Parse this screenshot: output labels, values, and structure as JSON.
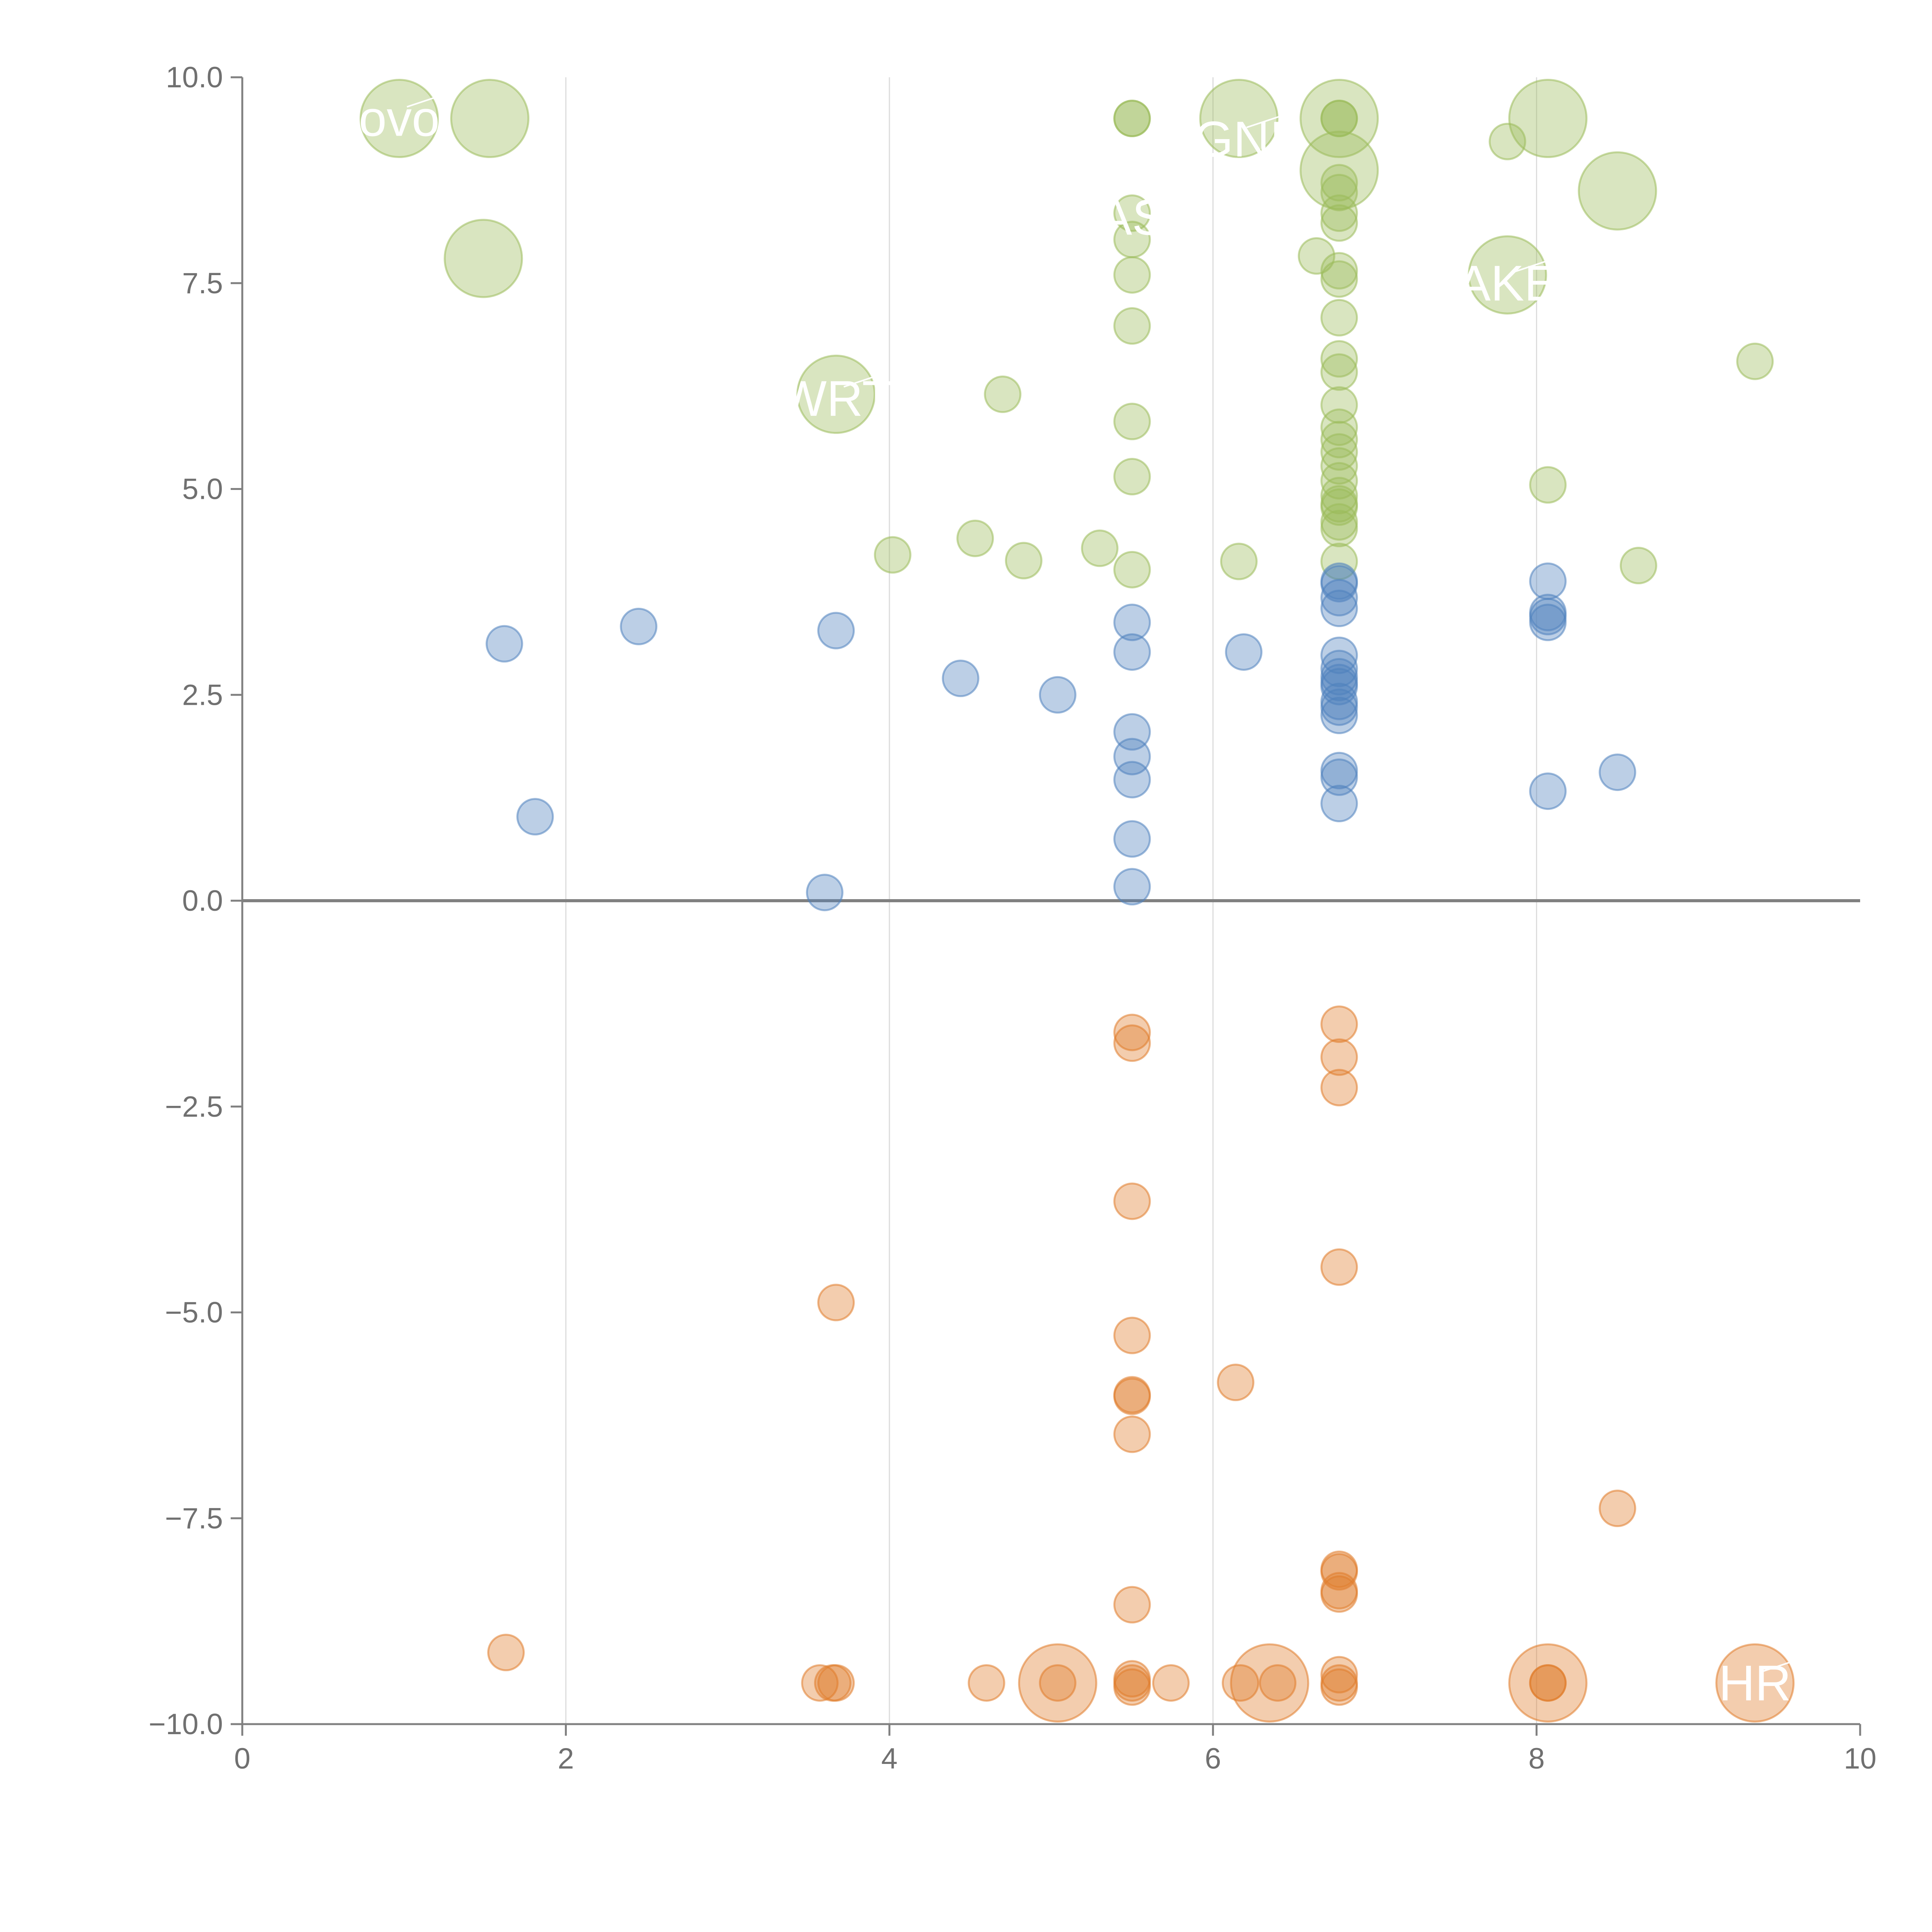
{
  "chart_data": {
    "type": "scatter",
    "title": "",
    "xlabel": "",
    "ylabel": "",
    "xlim": [
      0,
      10
    ],
    "ylim": [
      -10,
      10
    ],
    "x_ticks": [
      "0",
      "2",
      "4",
      "6",
      "8",
      "10"
    ],
    "x_tick_values": [
      0,
      2,
      4,
      6,
      8,
      10
    ],
    "y_ticks": [
      "10.0",
      "7.5",
      "5.0",
      "2.5",
      "0.0",
      "−2.5",
      "−5.0",
      "−7.5",
      "−10.0"
    ],
    "y_tick_values": [
      10,
      7.5,
      5,
      2.5,
      0,
      -2.5,
      -5,
      -7.5,
      -10
    ],
    "vertical_grid_at": [
      2,
      4,
      6,
      8
    ],
    "zero_line": true,
    "legend": "none",
    "colors": {
      "high": "#9bbb59",
      "middle": "#4f81bd",
      "low": "#e07b2a",
      "axis": "#808080",
      "grid": "#dcdcdc",
      "tick_text": "#707070",
      "label_text": "#ffffff"
    },
    "series": [
      {
        "name": "high",
        "points": [
          {
            "x": 0.97,
            "y": 9.5,
            "size": "large"
          },
          {
            "x": 1.53,
            "y": 9.5,
            "size": "large"
          },
          {
            "x": 1.49,
            "y": 7.8,
            "size": "large"
          },
          {
            "x": 3.67,
            "y": 6.15,
            "size": "large"
          },
          {
            "x": 6.16,
            "y": 9.5,
            "size": "large"
          },
          {
            "x": 6.78,
            "y": 9.5,
            "size": "large"
          },
          {
            "x": 6.78,
            "y": 8.87,
            "size": "large"
          },
          {
            "x": 7.82,
            "y": 7.6,
            "size": "large"
          },
          {
            "x": 8.07,
            "y": 9.5,
            "size": "large"
          },
          {
            "x": 8.5,
            "y": 8.62,
            "size": "large"
          },
          {
            "x": 4.02,
            "y": 4.2
          },
          {
            "x": 4.53,
            "y": 4.4
          },
          {
            "x": 4.7,
            "y": 6.15
          },
          {
            "x": 4.83,
            "y": 4.13
          },
          {
            "x": 5.3,
            "y": 4.28
          },
          {
            "x": 5.5,
            "y": 9.5
          },
          {
            "x": 5.5,
            "y": 9.5
          },
          {
            "x": 5.5,
            "y": 8.35
          },
          {
            "x": 5.5,
            "y": 8.03
          },
          {
            "x": 5.5,
            "y": 7.6
          },
          {
            "x": 5.5,
            "y": 6.98
          },
          {
            "x": 5.5,
            "y": 5.82
          },
          {
            "x": 5.5,
            "y": 5.15
          },
          {
            "x": 5.5,
            "y": 4.02
          },
          {
            "x": 6.16,
            "y": 4.12
          },
          {
            "x": 6.64,
            "y": 7.83
          },
          {
            "x": 6.78,
            "y": 9.5
          },
          {
            "x": 6.78,
            "y": 9.5
          },
          {
            "x": 6.78,
            "y": 8.72
          },
          {
            "x": 6.78,
            "y": 8.6
          },
          {
            "x": 6.78,
            "y": 8.35
          },
          {
            "x": 6.78,
            "y": 8.23
          },
          {
            "x": 6.78,
            "y": 7.65
          },
          {
            "x": 6.78,
            "y": 7.55
          },
          {
            "x": 6.78,
            "y": 7.08
          },
          {
            "x": 6.78,
            "y": 6.58
          },
          {
            "x": 6.78,
            "y": 6.42
          },
          {
            "x": 6.78,
            "y": 6.02
          },
          {
            "x": 6.78,
            "y": 5.75
          },
          {
            "x": 6.78,
            "y": 5.6
          },
          {
            "x": 6.78,
            "y": 5.45
          },
          {
            "x": 6.78,
            "y": 5.28
          },
          {
            "x": 6.78,
            "y": 5.1
          },
          {
            "x": 6.78,
            "y": 4.92
          },
          {
            "x": 6.78,
            "y": 4.82
          },
          {
            "x": 6.78,
            "y": 4.78
          },
          {
            "x": 6.78,
            "y": 4.6
          },
          {
            "x": 6.78,
            "y": 4.52
          },
          {
            "x": 6.78,
            "y": 4.12
          },
          {
            "x": 7.82,
            "y": 9.22
          },
          {
            "x": 8.07,
            "y": 5.05
          },
          {
            "x": 8.63,
            "y": 4.07
          },
          {
            "x": 9.35,
            "y": 6.55
          }
        ]
      },
      {
        "name": "middle",
        "points": [
          {
            "x": 1.62,
            "y": 3.12
          },
          {
            "x": 1.81,
            "y": 1.02
          },
          {
            "x": 2.45,
            "y": 3.33
          },
          {
            "x": 3.6,
            "y": 0.1
          },
          {
            "x": 3.67,
            "y": 3.28
          },
          {
            "x": 4.44,
            "y": 2.7
          },
          {
            "x": 5.04,
            "y": 2.5
          },
          {
            "x": 5.5,
            "y": 3.38
          },
          {
            "x": 5.5,
            "y": 3.02
          },
          {
            "x": 5.5,
            "y": 2.05
          },
          {
            "x": 5.5,
            "y": 1.75
          },
          {
            "x": 5.5,
            "y": 1.47
          },
          {
            "x": 5.5,
            "y": 0.75
          },
          {
            "x": 5.5,
            "y": 0.17
          },
          {
            "x": 6.19,
            "y": 3.02
          },
          {
            "x": 6.78,
            "y": 3.88
          },
          {
            "x": 6.78,
            "y": 3.85
          },
          {
            "x": 6.78,
            "y": 3.68
          },
          {
            "x": 6.78,
            "y": 3.55
          },
          {
            "x": 6.78,
            "y": 2.98
          },
          {
            "x": 6.78,
            "y": 2.82
          },
          {
            "x": 6.78,
            "y": 2.72
          },
          {
            "x": 6.78,
            "y": 2.65
          },
          {
            "x": 6.78,
            "y": 2.6
          },
          {
            "x": 6.78,
            "y": 2.42
          },
          {
            "x": 6.78,
            "y": 2.35
          },
          {
            "x": 6.78,
            "y": 2.25
          },
          {
            "x": 6.78,
            "y": 1.58
          },
          {
            "x": 6.78,
            "y": 1.5
          },
          {
            "x": 6.78,
            "y": 1.18
          },
          {
            "x": 8.07,
            "y": 3.88
          },
          {
            "x": 8.07,
            "y": 3.5
          },
          {
            "x": 8.07,
            "y": 3.45
          },
          {
            "x": 8.07,
            "y": 3.38
          },
          {
            "x": 8.07,
            "y": 1.33
          },
          {
            "x": 8.5,
            "y": 1.56
          }
        ]
      },
      {
        "name": "low",
        "points": [
          {
            "x": 5.04,
            "y": -9.5,
            "size": "large"
          },
          {
            "x": 6.35,
            "y": -9.5,
            "size": "large"
          },
          {
            "x": 8.07,
            "y": -9.5,
            "size": "large"
          },
          {
            "x": 9.35,
            "y": -9.5,
            "size": "large"
          },
          {
            "x": 1.63,
            "y": -9.13
          },
          {
            "x": 3.57,
            "y": -9.5
          },
          {
            "x": 3.65,
            "y": -9.5
          },
          {
            "x": 3.67,
            "y": -9.5
          },
          {
            "x": 3.67,
            "y": -4.88
          },
          {
            "x": 4.6,
            "y": -9.5
          },
          {
            "x": 5.04,
            "y": -9.5
          },
          {
            "x": 5.5,
            "y": -1.6
          },
          {
            "x": 5.5,
            "y": -1.73
          },
          {
            "x": 5.5,
            "y": -3.65
          },
          {
            "x": 5.5,
            "y": -5.28
          },
          {
            "x": 5.5,
            "y": -6.0
          },
          {
            "x": 5.5,
            "y": -6.02
          },
          {
            "x": 5.5,
            "y": -6.48
          },
          {
            "x": 5.5,
            "y": -8.55
          },
          {
            "x": 5.5,
            "y": -9.45
          },
          {
            "x": 5.5,
            "y": -9.5
          },
          {
            "x": 5.5,
            "y": -9.55
          },
          {
            "x": 5.74,
            "y": -9.5
          },
          {
            "x": 6.14,
            "y": -5.85
          },
          {
            "x": 6.17,
            "y": -9.5
          },
          {
            "x": 6.4,
            "y": -9.5
          },
          {
            "x": 6.78,
            "y": -1.5
          },
          {
            "x": 6.78,
            "y": -1.9
          },
          {
            "x": 6.78,
            "y": -2.27
          },
          {
            "x": 6.78,
            "y": -4.45
          },
          {
            "x": 6.78,
            "y": -8.12
          },
          {
            "x": 6.78,
            "y": -8.15
          },
          {
            "x": 6.78,
            "y": -8.38
          },
          {
            "x": 6.78,
            "y": -8.42
          },
          {
            "x": 6.78,
            "y": -9.4
          },
          {
            "x": 6.78,
            "y": -9.5
          },
          {
            "x": 6.78,
            "y": -9.55
          },
          {
            "x": 8.07,
            "y": -9.5
          },
          {
            "x": 8.07,
            "y": -9.5
          },
          {
            "x": 8.5,
            "y": -7.38
          }
        ]
      }
    ],
    "annotations": [
      {
        "text": "ovo",
        "x": 0.97,
        "y": 9.5,
        "ax": 0.99,
        "ay": 9.2
      },
      {
        "text": "WRT",
        "x": 3.67,
        "y": 6.1
      },
      {
        "text": "GNI",
        "x": 6.16,
        "y": 9.25
      },
      {
        "text": "AS",
        "x": 5.5,
        "y": 8.3
      },
      {
        "text": "AKE",
        "x": 7.82,
        "y": 7.5
      },
      {
        "text": "HR",
        "x": 9.35,
        "y": -9.5
      }
    ]
  }
}
